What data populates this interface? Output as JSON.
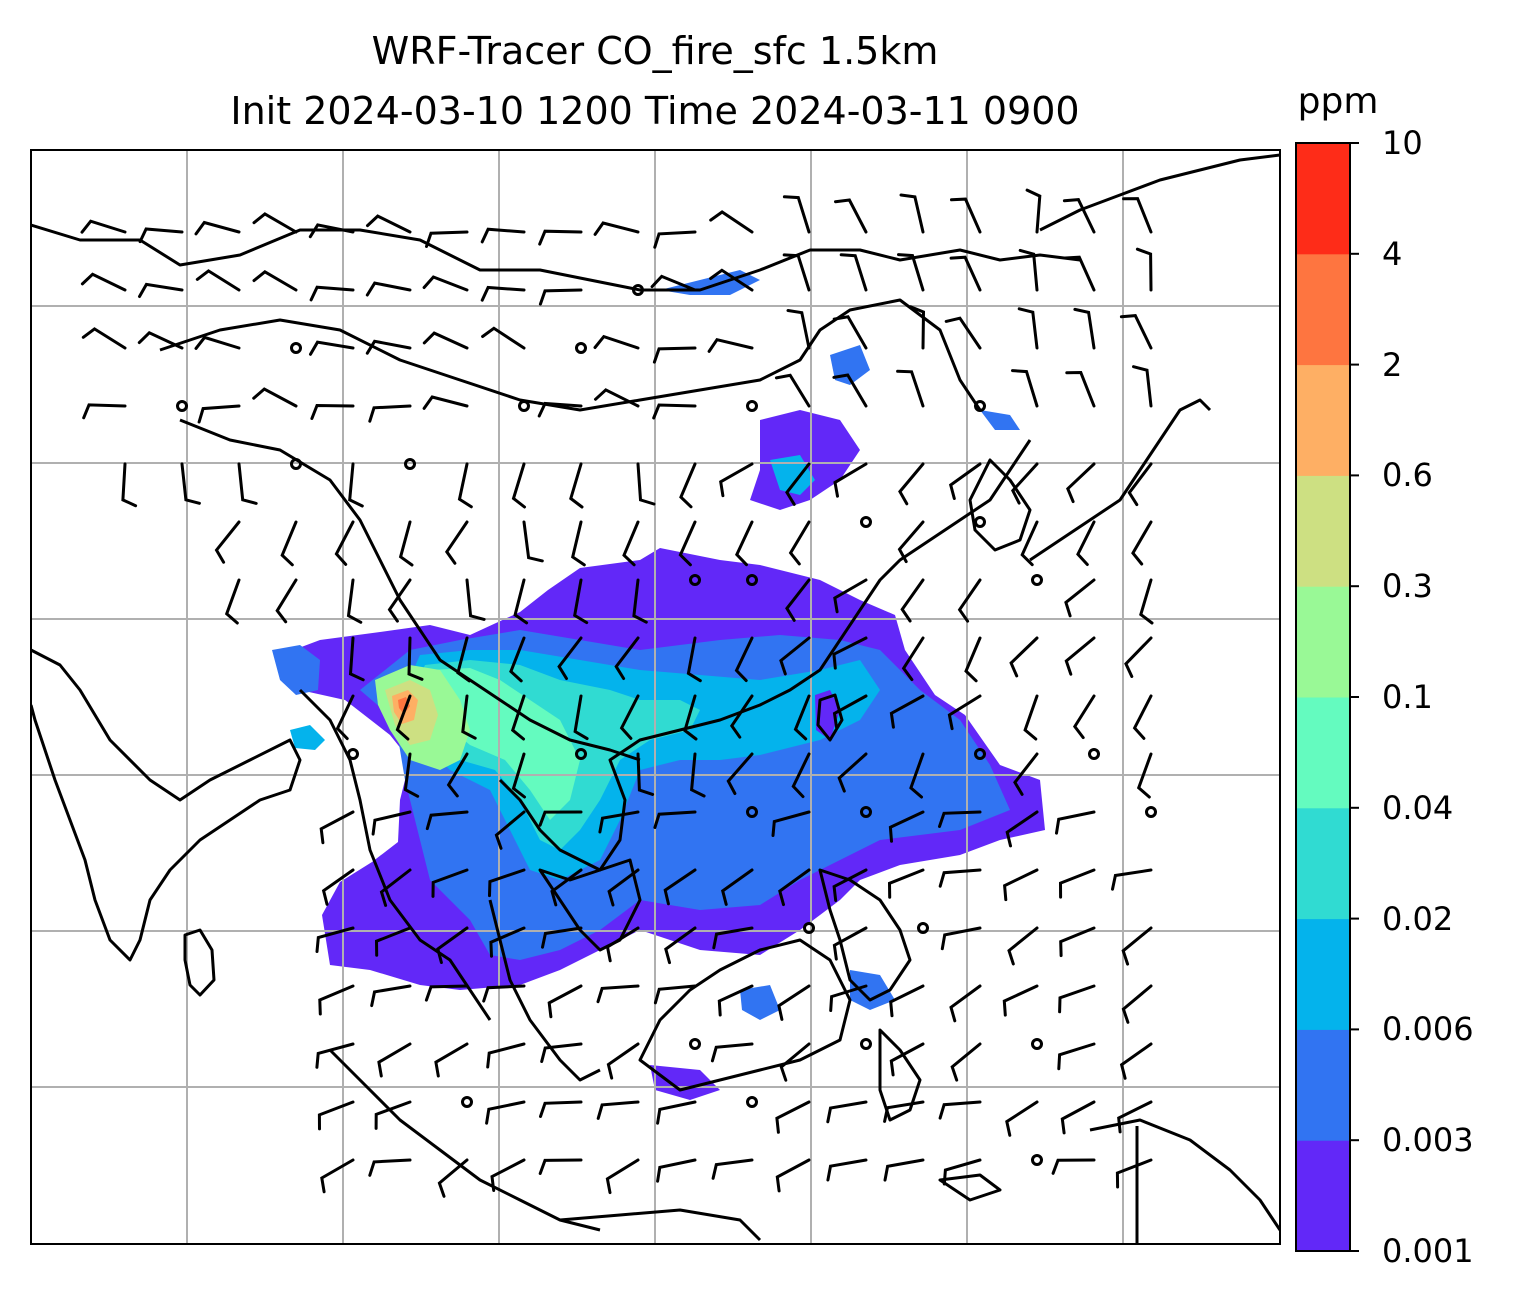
{
  "title": {
    "line1": "WRF-Tracer CO_fire_sfc 1.5km",
    "line2": "Init 2024-03-10 1200 Time 2024-03-11 0900"
  },
  "colorbar": {
    "unit": "ppm",
    "levels": [
      "0.001",
      "0.003",
      "0.006",
      "0.02",
      "0.04",
      "0.1",
      "0.3",
      "0.6",
      "2",
      "4",
      "10"
    ],
    "colors": [
      "#6228f8",
      "#3174f2",
      "#04b3ec",
      "#30dbd2",
      "#64fbbf",
      "#99f996",
      "#cde082",
      "#feaf64",
      "#fe7540",
      "#fe2c18"
    ]
  },
  "map": {
    "gridline_color": "#b0b0b0",
    "coastline_color": "#000000",
    "wind_barb_color": "#000000",
    "field": "CO_fire_sfc",
    "level": "1.5km"
  }
}
